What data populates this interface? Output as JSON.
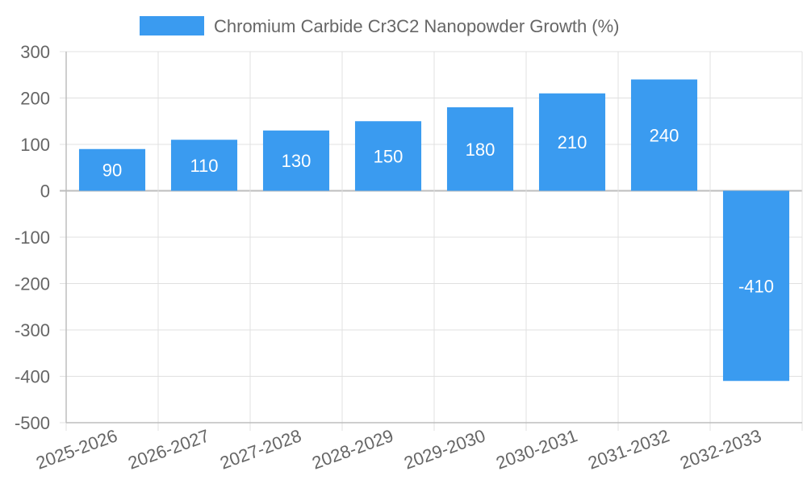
{
  "chart_data": {
    "type": "bar",
    "title": "",
    "xlabel": "",
    "ylabel": "",
    "legend": {
      "position": "top",
      "entries": [
        "Chromium Carbide Cr3C2 Nanopowder Growth (%)"
      ]
    },
    "categories": [
      "2025-2026",
      "2026-2027",
      "2027-2028",
      "2028-2029",
      "2029-2030",
      "2030-2031",
      "2031-2032",
      "2032-2033"
    ],
    "series": [
      {
        "name": "Chromium Carbide Cr3C2 Nanopowder Growth (%)",
        "values": [
          90,
          110,
          130,
          150,
          180,
          210,
          240,
          -410
        ],
        "color": "#3a9bf0"
      }
    ],
    "ylim": [
      -500,
      300
    ],
    "yticks": [
      300,
      200,
      100,
      0,
      -100,
      -200,
      -300,
      -400,
      -500
    ],
    "grid": true,
    "data_labels": true
  }
}
